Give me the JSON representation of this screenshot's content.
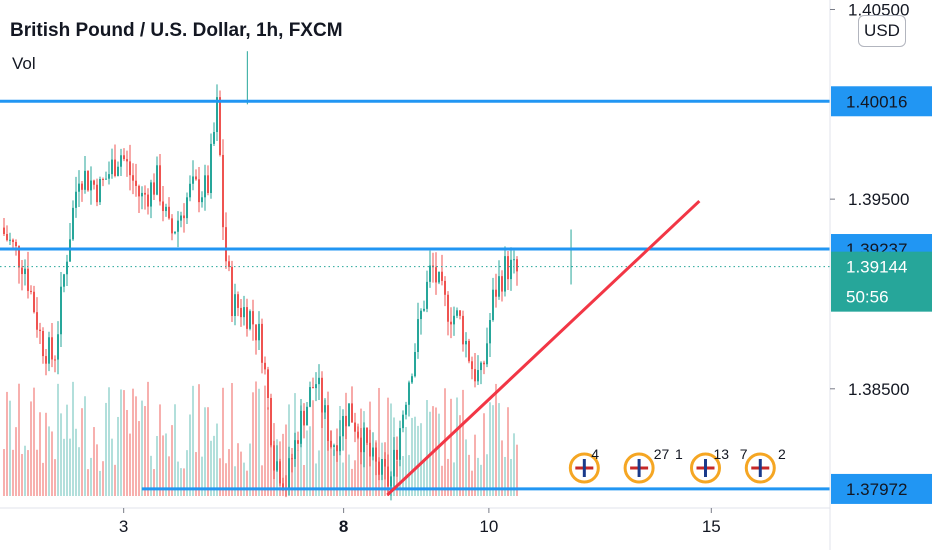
{
  "legend": {
    "symbol_title": "British Pound / U.S. Dollar, 1h, FXCM",
    "volume_label": "Vol"
  },
  "price_scale": {
    "currency": "USD",
    "tick_labels": [
      "1.40500",
      "1.39500",
      "1.38500"
    ]
  },
  "colors": {
    "up": "#26a69a",
    "down": "#ef5350",
    "level_line": "#2196f3",
    "trend_line": "#f23645",
    "countdown_tag": "#26a69a",
    "volume_up": "#b2dfdb",
    "volume_down": "#f7b0ae"
  },
  "chart_data": {
    "type": "candlestick",
    "title": "British Pound / U.S. Dollar, 1h, FXCM",
    "y_range": [
      1.3765,
      1.4055
    ],
    "x_tick_labels": [
      "3",
      "8",
      "10",
      "15"
    ],
    "current_price": 1.39144,
    "countdown": "50:56",
    "horizontal_levels": [
      1.40016,
      1.39237,
      1.37972
    ],
    "trend_line": {
      "from": [
        0.4667,
        1.3794
      ],
      "to": [
        0.8426,
        1.3949
      ]
    },
    "price_path": [
      [
        0.0,
        1.3935
      ],
      [
        0.03,
        1.3915
      ],
      [
        0.05,
        1.3875
      ],
      [
        0.065,
        1.3865
      ],
      [
        0.08,
        1.392
      ],
      [
        0.095,
        1.3965
      ],
      [
        0.12,
        1.3955
      ],
      [
        0.145,
        1.3975
      ],
      [
        0.17,
        1.395
      ],
      [
        0.19,
        1.396
      ],
      [
        0.205,
        1.393
      ],
      [
        0.23,
        1.3955
      ],
      [
        0.25,
        1.3955
      ],
      [
        0.262,
        1.4
      ],
      [
        0.27,
        1.3925
      ],
      [
        0.28,
        1.3895
      ],
      [
        0.3,
        1.389
      ],
      [
        0.315,
        1.3875
      ],
      [
        0.33,
        1.3815
      ],
      [
        0.345,
        1.38
      ],
      [
        0.36,
        1.383
      ],
      [
        0.38,
        1.3855
      ],
      [
        0.4,
        1.382
      ],
      [
        0.42,
        1.384
      ],
      [
        0.45,
        1.381
      ],
      [
        0.47,
        1.38
      ],
      [
        0.49,
        1.385
      ],
      [
        0.51,
        1.3895
      ],
      [
        0.52,
        1.3915
      ],
      [
        0.535,
        1.3895
      ],
      [
        0.555,
        1.3885
      ],
      [
        0.57,
        1.386
      ],
      [
        0.58,
        1.3855
      ],
      [
        0.595,
        1.39
      ],
      [
        0.61,
        1.3915
      ],
      [
        0.625,
        1.391
      ]
    ],
    "volume_labels": {
      "event_counts": [
        "4",
        "27",
        "1",
        "13",
        "7",
        "2"
      ]
    },
    "x_tick_positions": [
      0.149,
      0.414,
      0.589,
      0.857
    ]
  }
}
